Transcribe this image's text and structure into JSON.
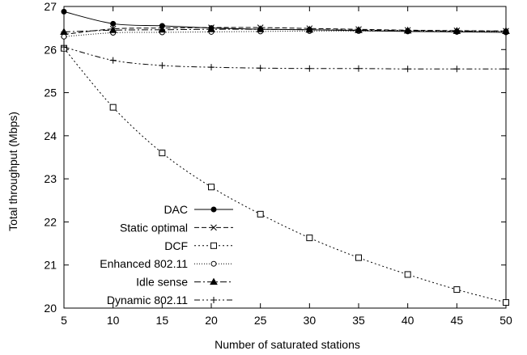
{
  "chart_data": {
    "type": "line",
    "title": "",
    "xlabel": "Number of saturated stations",
    "ylabel": "Total throughput (Mbps)",
    "xlim": [
      5,
      50
    ],
    "ylim": [
      20,
      27
    ],
    "xticks": [
      5,
      10,
      15,
      20,
      25,
      30,
      35,
      40,
      45,
      50
    ],
    "yticks": [
      20,
      21,
      22,
      23,
      24,
      25,
      26,
      27
    ],
    "grid": false,
    "legend_position": "bottom-left",
    "x": [
      5,
      10,
      15,
      20,
      25,
      30,
      35,
      40,
      45,
      50
    ],
    "series": [
      {
        "name": "DAC",
        "marker": "filled-circle",
        "dash": "solid",
        "values": [
          26.88,
          26.6,
          26.55,
          26.5,
          26.47,
          26.46,
          26.44,
          26.42,
          26.41,
          26.4
        ]
      },
      {
        "name": "Static optimal",
        "marker": "cross",
        "dash": "dashed",
        "values": [
          26.35,
          26.48,
          26.5,
          26.51,
          26.51,
          26.49,
          26.47,
          26.45,
          26.44,
          26.43
        ]
      },
      {
        "name": "DCF",
        "marker": "open-square",
        "dash": "dotted",
        "values": [
          26.03,
          24.66,
          23.6,
          22.81,
          22.18,
          21.63,
          21.17,
          20.78,
          20.43,
          20.13
        ]
      },
      {
        "name": "Enhanced 802.11",
        "marker": "open-circle",
        "dash": "dotted-fine",
        "values": [
          26.3,
          26.39,
          26.4,
          26.41,
          26.42,
          26.43,
          26.43,
          26.43,
          26.42,
          26.42
        ]
      },
      {
        "name": "Idle sense",
        "marker": "filled-triangle",
        "dash": "dash-dot",
        "values": [
          26.41,
          26.45,
          26.46,
          26.47,
          26.47,
          26.46,
          26.45,
          26.44,
          26.43,
          26.43
        ]
      },
      {
        "name": "Dynamic 802.11",
        "marker": "plus",
        "dash": "dash-dot-dot",
        "values": [
          26.06,
          25.75,
          25.63,
          25.59,
          25.57,
          25.56,
          25.56,
          25.55,
          25.55,
          25.55
        ]
      }
    ]
  }
}
